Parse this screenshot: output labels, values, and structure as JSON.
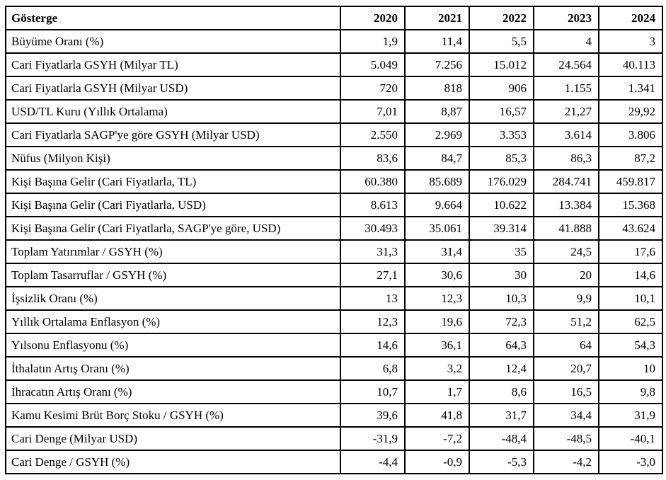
{
  "table": {
    "columns": [
      {
        "label": "Gösterge"
      },
      {
        "label": "2020"
      },
      {
        "label": "2021"
      },
      {
        "label": "2022"
      },
      {
        "label": "2023"
      },
      {
        "label": "2024"
      }
    ],
    "rows": [
      {
        "label": "Büyüme Oranı (%)",
        "values": [
          "1,9",
          "11,4",
          "5,5",
          "4",
          "3"
        ]
      },
      {
        "label": "Cari Fiyatlarla GSYH (Milyar TL)",
        "values": [
          "5.049",
          "7.256",
          "15.012",
          "24.564",
          "40.113"
        ]
      },
      {
        "label": "Cari Fiyatlarla GSYH (Milyar USD)",
        "values": [
          "720",
          "818",
          "906",
          "1.155",
          "1.341"
        ]
      },
      {
        "label": "USD/TL Kuru (Yıllık Ortalama)",
        "values": [
          "7,01",
          "8,87",
          "16,57",
          "21,27",
          "29,92"
        ]
      },
      {
        "label": "Cari Fiyatlarla SAGP'ye göre GSYH (Milyar USD)",
        "values": [
          "2.550",
          "2.969",
          "3.353",
          "3.614",
          "3.806"
        ]
      },
      {
        "label": "Nüfus (Milyon Kişi)",
        "values": [
          "83,6",
          "84,7",
          "85,3",
          "86,3",
          "87,2"
        ]
      },
      {
        "label": "Kişi Başına Gelir (Cari Fiyatlarla, TL)",
        "values": [
          "60.380",
          "85.689",
          "176.029",
          "284.741",
          "459.817"
        ]
      },
      {
        "label": "Kişi Başına Gelir (Cari Fiyatlarla, USD)",
        "values": [
          "8.613",
          "9.664",
          "10.622",
          "13.384",
          "15.368"
        ]
      },
      {
        "label": "Kişi Başına Gelir (Cari Fiyatlarla, SAGP'ye göre, USD)",
        "values": [
          "30.493",
          "35.061",
          "39.314",
          "41.888",
          "43.624"
        ]
      },
      {
        "label": "Toplam Yatırımlar / GSYH (%)",
        "values": [
          "31,3",
          "31,4",
          "35",
          "24,5",
          "17,6"
        ]
      },
      {
        "label": "Toplam Tasarruflar / GSYH (%)",
        "values": [
          "27,1",
          "30,6",
          "30",
          "20",
          "14,6"
        ]
      },
      {
        "label": "İşsizlik Oranı (%)",
        "values": [
          "13",
          "12,3",
          "10,3",
          "9,9",
          "10,1"
        ]
      },
      {
        "label": "Yıllık Ortalama Enflasyon (%)",
        "values": [
          "12,3",
          "19,6",
          "72,3",
          "51,2",
          "62,5"
        ]
      },
      {
        "label": "Yılsonu Enflasyonu (%)",
        "values": [
          "14,6",
          "36,1",
          "64,3",
          "64",
          "54,3"
        ]
      },
      {
        "label": "İthalatın Artış Oranı (%)",
        "values": [
          "6,8",
          "3,2",
          "12,4",
          "20,7",
          "10"
        ]
      },
      {
        "label": "İhracatın Artış Oranı (%)",
        "values": [
          "10,7",
          "1,7",
          "8,6",
          "16,5",
          "9,8"
        ]
      },
      {
        "label": "Kamu Kesimi Brüt Borç Stoku / GSYH (%)",
        "values": [
          "39,6",
          "41,8",
          "31,7",
          "34,4",
          "31,9"
        ]
      },
      {
        "label": "Cari Denge (Milyar USD)",
        "values": [
          "-31,9",
          "-7,2",
          "-48,4",
          "-48,5",
          "-40,1"
        ]
      },
      {
        "label": "Cari Denge / GSYH (%)",
        "values": [
          "-4,4",
          "-0,9",
          "-5,3",
          "-4,2",
          "-3,0"
        ]
      }
    ]
  }
}
